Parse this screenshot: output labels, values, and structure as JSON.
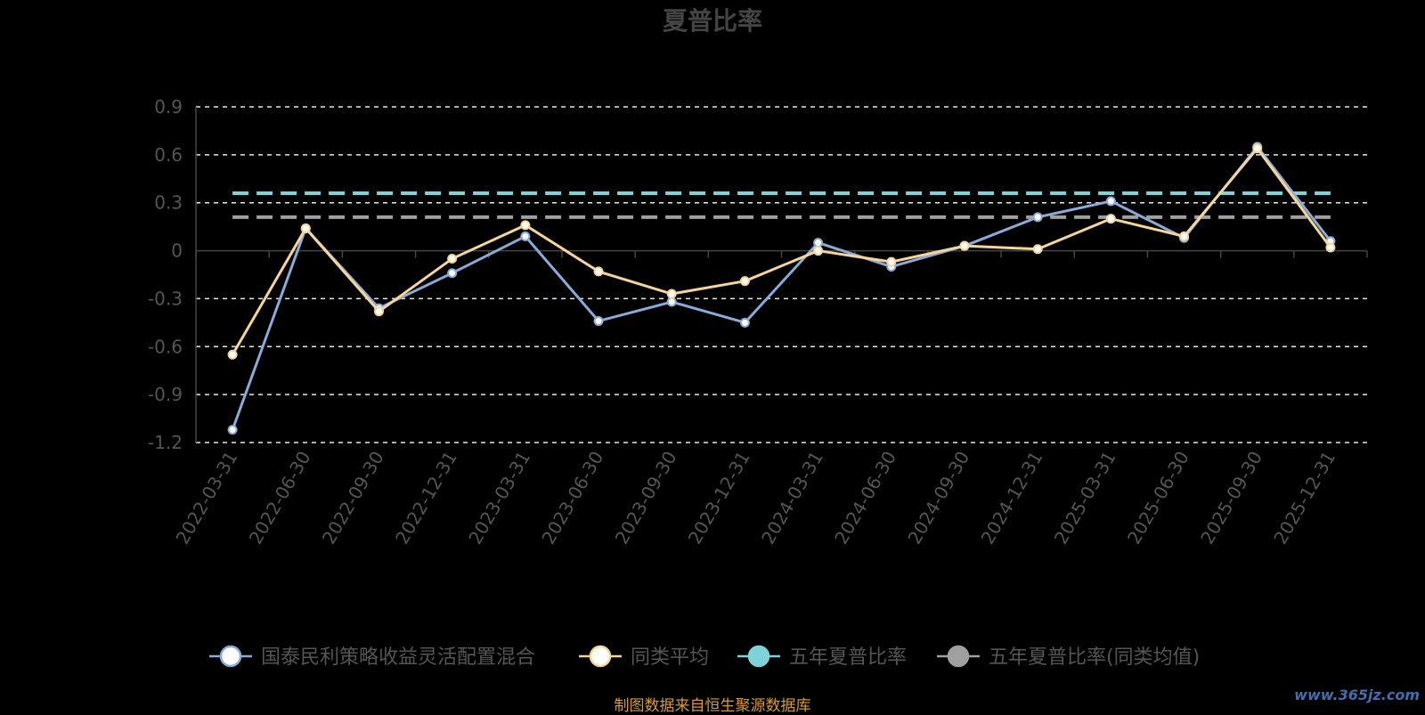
{
  "chart_data": {
    "type": "line",
    "title": "夏普比率",
    "x": [
      "2022-03-31",
      "2022-06-30",
      "2022-09-30",
      "2022-12-31",
      "2023-03-31",
      "2023-06-30",
      "2023-09-30",
      "2023-12-31",
      "2024-03-31",
      "2024-06-30",
      "2024-09-30",
      "2024-12-31",
      "2025-03-31",
      "2025-06-30",
      "2025-09-30",
      "2025-12-31"
    ],
    "yticks": [
      "0.9",
      "0.6",
      "0.3",
      "0",
      "-0.3",
      "-0.6",
      "-0.9",
      "-1.2"
    ],
    "ylim": [
      -1.2,
      0.9
    ],
    "grid": true,
    "legend_position": "bottom",
    "series": [
      {
        "name": "国泰民利策略收益灵活配置混合",
        "color": "#8aaad8",
        "values": [
          -1.12,
          0.14,
          -0.36,
          -0.14,
          0.09,
          -0.44,
          -0.32,
          -0.45,
          0.05,
          -0.1,
          0.03,
          0.21,
          0.31,
          0.08,
          0.65,
          0.06
        ]
      },
      {
        "name": "同类平均",
        "color": "#f5d59a",
        "values": [
          -0.65,
          0.14,
          -0.38,
          -0.05,
          0.16,
          -0.13,
          -0.27,
          -0.19,
          0.0,
          -0.07,
          0.03,
          0.01,
          0.2,
          0.09,
          0.64,
          0.02
        ]
      }
    ],
    "reference_lines": [
      {
        "name": "五年夏普比率",
        "color": "#7ed3d8",
        "value": 0.36
      },
      {
        "name": "五年夏普比率(同类均值)",
        "color": "#a0a0a0",
        "value": 0.21
      }
    ]
  },
  "source_note": "制图数据来自恒生聚源数据库",
  "watermark": "www.365jz.com"
}
